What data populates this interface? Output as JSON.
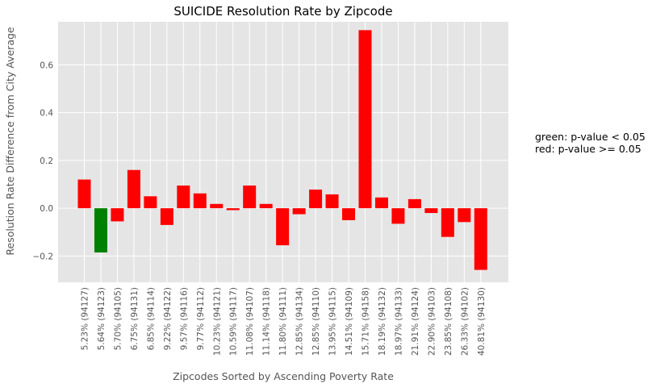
{
  "chart_data": {
    "type": "bar",
    "title": "SUICIDE Resolution Rate by Zipcode",
    "xlabel": "Zipcodes Sorted by Ascending Poverty Rate",
    "ylabel": "Resolution Rate Difference from City Average",
    "ylim": [
      -0.31,
      0.78
    ],
    "yticks": [
      -0.2,
      0.0,
      0.2,
      0.4,
      0.6
    ],
    "ytick_labels": [
      "−0.2",
      "0.0",
      "0.2",
      "0.4",
      "0.6"
    ],
    "grid": true,
    "categories": [
      "5.23%  (94127)",
      "5.64%  (94123)",
      "5.70%  (94105)",
      "6.75%  (94131)",
      "6.85%  (94114)",
      "9.22%  (94122)",
      "9.57%  (94116)",
      "9.77%  (94112)",
      "10.23%  (94121)",
      "10.59%  (94117)",
      "11.08%  (94107)",
      "11.14%  (94118)",
      "11.80%  (94111)",
      "12.85%  (94134)",
      "12.85%  (94110)",
      "13.95%  (94115)",
      "14.51%  (94109)",
      "15.71%  (94158)",
      "18.19%  (94132)",
      "18.97%  (94133)",
      "21.91%  (94124)",
      "22.90%  (94103)",
      "23.85%  (94108)",
      "26.33%  (94102)",
      "40.81%  (94130)"
    ],
    "values": [
      0.12,
      -0.185,
      -0.055,
      0.16,
      0.05,
      -0.07,
      0.095,
      0.062,
      0.018,
      -0.008,
      0.095,
      0.018,
      -0.155,
      -0.025,
      0.078,
      0.058,
      -0.05,
      0.745,
      0.045,
      -0.065,
      0.038,
      -0.02,
      -0.12,
      -0.058,
      -0.258
    ],
    "colors": [
      "red",
      "green",
      "red",
      "red",
      "red",
      "red",
      "red",
      "red",
      "red",
      "red",
      "red",
      "red",
      "red",
      "red",
      "red",
      "red",
      "red",
      "red",
      "red",
      "red",
      "red",
      "red",
      "red",
      "red",
      "red"
    ],
    "palette": {
      "red": "#ff0000",
      "green": "#008000"
    },
    "annotations": [
      "green: p-value < 0.05",
      "red: p-value >= 0.05"
    ]
  }
}
